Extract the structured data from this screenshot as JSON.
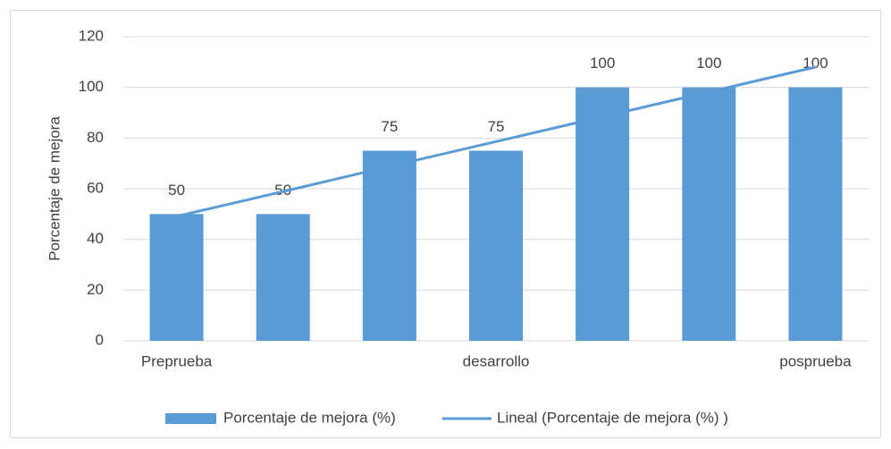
{
  "chart_data": {
    "type": "bar",
    "y_label": "Porcentaje de mejora",
    "categories": [
      "Preprueba",
      null,
      null,
      "desarrollo",
      null,
      null,
      "posprueba"
    ],
    "series": [
      {
        "name": "Porcentaje de mejora (%)",
        "color": "#5b9bd5",
        "values": [
          50,
          50,
          75,
          75,
          100,
          100,
          100
        ]
      },
      {
        "name": "Lineal (Porcentaje de mejora (%) )",
        "type": "line",
        "color": "#5b9bd5",
        "values": [
          49.1,
          58.9,
          68.8,
          78.6,
          88.4,
          98.2,
          108.0
        ]
      }
    ],
    "ylim": [
      0,
      120
    ],
    "yticks": [
      0,
      20,
      40,
      60,
      80,
      100,
      120
    ],
    "grid": true,
    "legend": "bottom"
  }
}
